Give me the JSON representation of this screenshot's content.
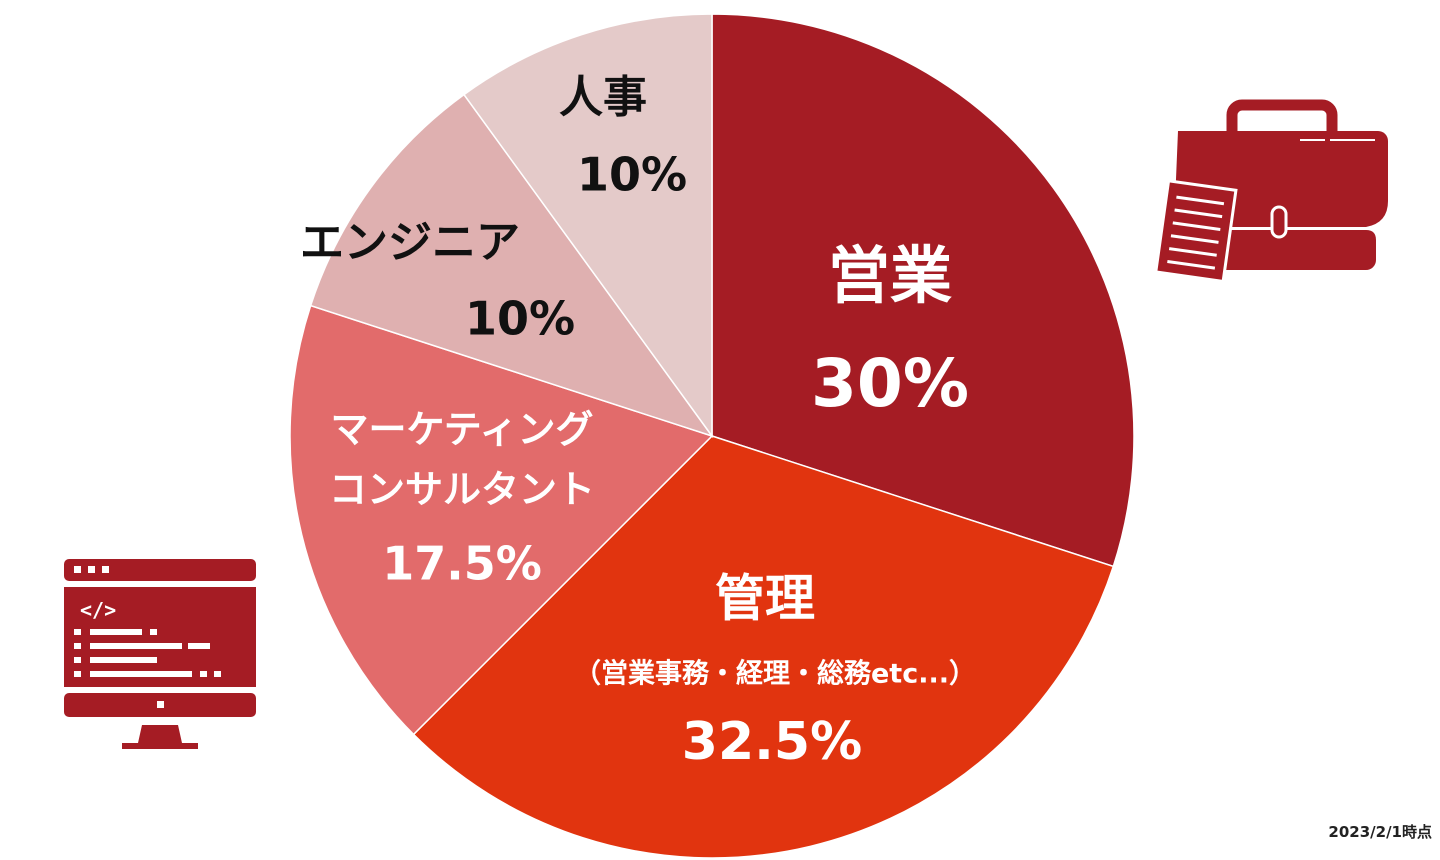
{
  "chart_data": {
    "type": "pie",
    "start_angle_deg": 0,
    "direction": "clockwise",
    "slices": [
      {
        "label": "営業",
        "sublabel": "",
        "value": 30,
        "value_label": "30%",
        "color": "#a51c24",
        "text_color": "#ffffff"
      },
      {
        "label": "管理",
        "sublabel": "（営業事務・経理・総務etc...）",
        "value": 32.5,
        "value_label": "32.5%",
        "color": "#e1340f",
        "text_color": "#ffffff"
      },
      {
        "label": "マーケティング|コンサルタント",
        "sublabel": "",
        "value": 17.5,
        "value_label": "17.5%",
        "color": "#e26b6b",
        "text_color": "#ffffff"
      },
      {
        "label": "エンジニア",
        "sublabel": "",
        "value": 10,
        "value_label": "10%",
        "color": "#dfb0b0",
        "text_color": "#111111"
      },
      {
        "label": "人事",
        "sublabel": "",
        "value": 10,
        "value_label": "10%",
        "color": "#e4cac9",
        "text_color": "#111111"
      }
    ]
  },
  "footnote": "2023/2/1時点",
  "icons": {
    "briefcase": "briefcase-icon",
    "computer": "computer-code-icon"
  },
  "icon_color": "#a51c24"
}
